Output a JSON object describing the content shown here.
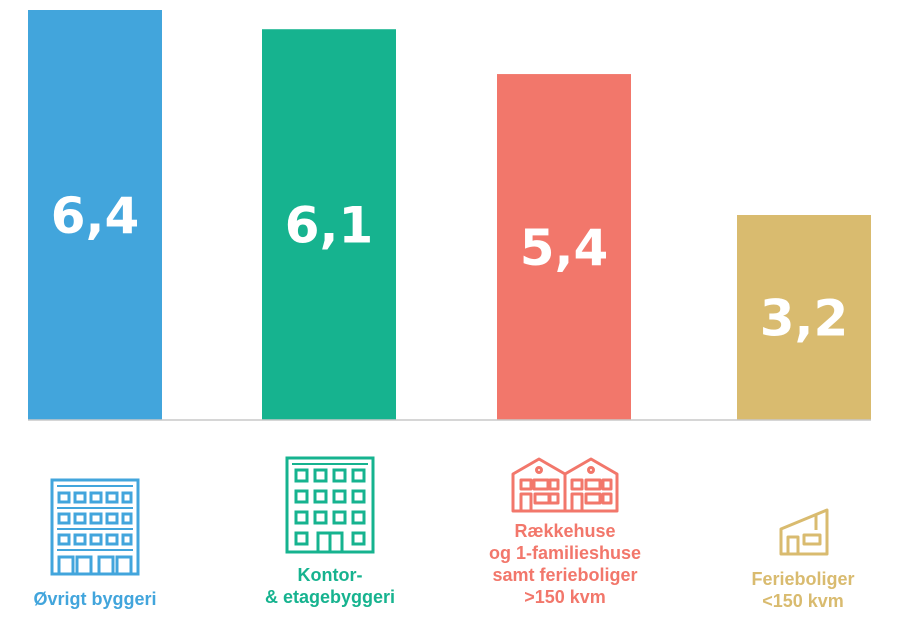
{
  "chart_data": {
    "type": "bar",
    "categories": [
      "Øvrigt byggeri",
      "Kontor-\n& etagebyggeri",
      "Rækkehuse\nog 1-familieshuse\nsamt ferieboliger\n>150 kvm",
      "Ferieboliger\n<150 kvm"
    ],
    "values": [
      6.4,
      6.1,
      5.4,
      3.2
    ],
    "value_labels": [
      "6,4",
      "6,1",
      "5,4",
      "3,2"
    ],
    "colors": [
      "#42a5dc",
      "#16b38f",
      "#f2776b",
      "#d9bb6f"
    ],
    "icons": [
      "office-building-icon",
      "apartment-building-icon",
      "row-houses-icon",
      "holiday-home-icon"
    ],
    "title": "",
    "xlabel": "",
    "ylabel": "",
    "ylim": [
      0,
      6.4
    ],
    "grid": false,
    "legend": "none"
  },
  "colors": {
    "axis": "#c8c8c8"
  }
}
